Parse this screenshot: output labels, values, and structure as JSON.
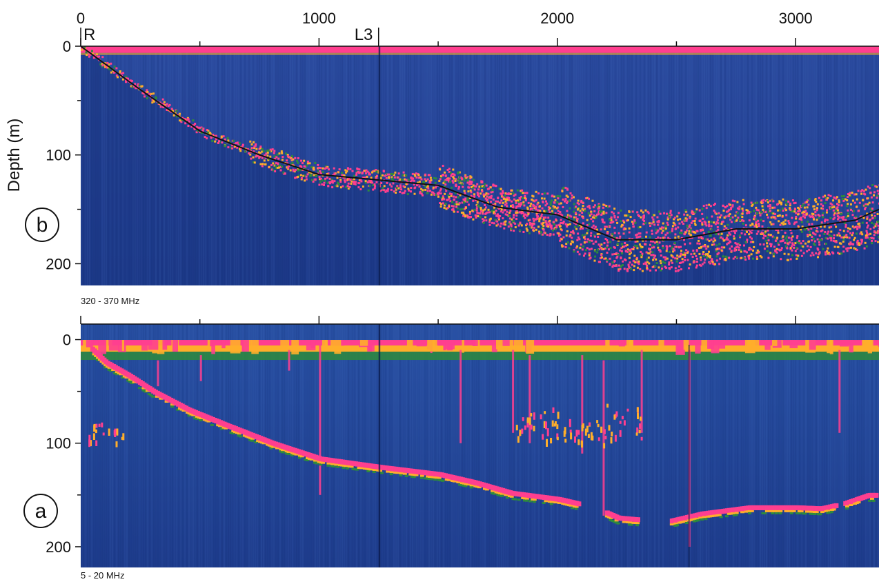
{
  "figure": {
    "depth_axis_title": "Depth (m)",
    "markers": [
      {
        "label": "R",
        "distance": 0
      },
      {
        "label": "L3",
        "distance": 1250
      }
    ]
  },
  "chart_data": [
    {
      "type": "heatmap",
      "panel_label": "b",
      "frequency_label": "320 - 370 MHz",
      "xlim": [
        0,
        3350
      ],
      "ylim": [
        0,
        220
      ],
      "x_ticks": [
        0,
        1000,
        2000,
        3000
      ],
      "x_tick_labels_shown": true,
      "y_ticks": [
        0,
        100,
        200
      ],
      "surface_reflection_depth": 3,
      "bed_line": {
        "x": [
          0,
          250,
          500,
          750,
          1000,
          1250,
          1500,
          1750,
          2000,
          2250,
          2500,
          2750,
          3000,
          3250,
          3350
        ],
        "y": [
          0,
          40,
          78,
          100,
          118,
          123,
          128,
          148,
          155,
          178,
          178,
          168,
          168,
          160,
          150
        ]
      },
      "colors": {
        "background": "#1f3f8f",
        "strong": "#ff3f8f",
        "medium": "#ffae2a",
        "weak": "#2e8b3c"
      }
    },
    {
      "type": "heatmap",
      "panel_label": "a",
      "frequency_label": "5 - 20 MHz",
      "xlim": [
        0,
        3350
      ],
      "ylim": [
        -15,
        220
      ],
      "x_ticks": [
        0,
        1000,
        2000,
        3000
      ],
      "x_tick_labels_shown": false,
      "y_ticks": [
        0,
        100,
        200
      ],
      "surface_reflection_depth": 5,
      "bed_reflector": {
        "x": [
          0,
          100,
          200,
          300,
          450,
          600,
          800,
          1000,
          1250,
          1500,
          1650,
          1800,
          2000,
          2150,
          2250,
          2450,
          2600,
          2800,
          3000,
          3100,
          3200,
          3300
        ],
        "y": [
          0,
          22,
          35,
          50,
          68,
          82,
          100,
          115,
          123,
          130,
          138,
          148,
          154,
          162,
          172,
          176,
          168,
          162,
          162,
          163,
          158,
          150
        ]
      },
      "colors": {
        "background": "#1f3f8f",
        "strong": "#ff3f8f",
        "medium": "#ffae2a",
        "weak": "#2e8b3c"
      }
    }
  ]
}
